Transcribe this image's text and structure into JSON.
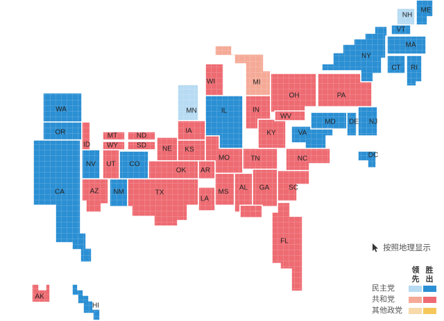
{
  "colors": {
    "dem_win": "#2b8fd3",
    "dem_lead": "#b7dbf3",
    "rep_win": "#ee6b72",
    "rep_lead": "#f5aa97",
    "oth_win": "#f6c75a",
    "oth_lead": "#f7d9aa"
  },
  "states": [
    {
      "code": "NH",
      "status": "dem_lead"
    },
    {
      "code": "ME",
      "status": "dem_win"
    },
    {
      "code": "VT",
      "status": "dem_win"
    },
    {
      "code": "NY",
      "status": "dem_win"
    },
    {
      "code": "MA",
      "status": "dem_win"
    },
    {
      "code": "CT",
      "status": "dem_win"
    },
    {
      "code": "RI",
      "status": "dem_win"
    },
    {
      "code": "WI",
      "status": "rep_win"
    },
    {
      "code": "MI",
      "status": "rep_lead"
    },
    {
      "code": "MN",
      "status": "dem_lead"
    },
    {
      "code": "IL",
      "status": "dem_win"
    },
    {
      "code": "IN",
      "status": "rep_win"
    },
    {
      "code": "OH",
      "status": "rep_win"
    },
    {
      "code": "PA",
      "status": "rep_win"
    },
    {
      "code": "WA",
      "status": "dem_win"
    },
    {
      "code": "OR",
      "status": "dem_win"
    },
    {
      "code": "CA",
      "status": "dem_win"
    },
    {
      "code": "NV",
      "status": "dem_win"
    },
    {
      "code": "CO",
      "status": "dem_win"
    },
    {
      "code": "NM",
      "status": "dem_win"
    },
    {
      "code": "VA",
      "status": "dem_win"
    },
    {
      "code": "MD",
      "status": "dem_win"
    },
    {
      "code": "DE",
      "status": "dem_win"
    },
    {
      "code": "NJ",
      "status": "dem_win"
    },
    {
      "code": "DC",
      "status": "dem_win"
    },
    {
      "code": "HI",
      "status": "dem_win"
    },
    {
      "code": "MT",
      "status": "rep_win"
    },
    {
      "code": "ND",
      "status": "rep_win"
    },
    {
      "code": "WY",
      "status": "rep_win"
    },
    {
      "code": "SD",
      "status": "rep_win"
    },
    {
      "code": "ID",
      "status": "rep_win"
    },
    {
      "code": "UT",
      "status": "rep_win"
    },
    {
      "code": "AZ",
      "status": "rep_win"
    },
    {
      "code": "NE",
      "status": "rep_win"
    },
    {
      "code": "KS",
      "status": "rep_win"
    },
    {
      "code": "IA",
      "status": "rep_win"
    },
    {
      "code": "MO",
      "status": "rep_win"
    },
    {
      "code": "OK",
      "status": "rep_win"
    },
    {
      "code": "TX",
      "status": "rep_win"
    },
    {
      "code": "AR",
      "status": "rep_win"
    },
    {
      "code": "LA",
      "status": "rep_win"
    },
    {
      "code": "MS",
      "status": "rep_win"
    },
    {
      "code": "AL",
      "status": "rep_win"
    },
    {
      "code": "GA",
      "status": "rep_win"
    },
    {
      "code": "TN",
      "status": "rep_win"
    },
    {
      "code": "KY",
      "status": "rep_win"
    },
    {
      "code": "WV",
      "status": "rep_win"
    },
    {
      "code": "NC",
      "status": "rep_win"
    },
    {
      "code": "SC",
      "status": "rep_win"
    },
    {
      "code": "FL",
      "status": "rep_win"
    },
    {
      "code": "AK",
      "status": "rep_win"
    }
  ],
  "geo_toggle": {
    "label": "按照地理显示",
    "icon": "cursor-arrow-icon"
  },
  "legend": {
    "col_lead": "领先",
    "col_win": "胜出",
    "rows": [
      {
        "label": "民主党",
        "lead_color": "#b7dbf3",
        "win_color": "#2b8fd3"
      },
      {
        "label": "共和党",
        "lead_color": "#f5aa97",
        "win_color": "#ee6b72"
      },
      {
        "label": "其他政党",
        "lead_color": "#f7d9aa",
        "win_color": "#f6c75a"
      }
    ]
  }
}
